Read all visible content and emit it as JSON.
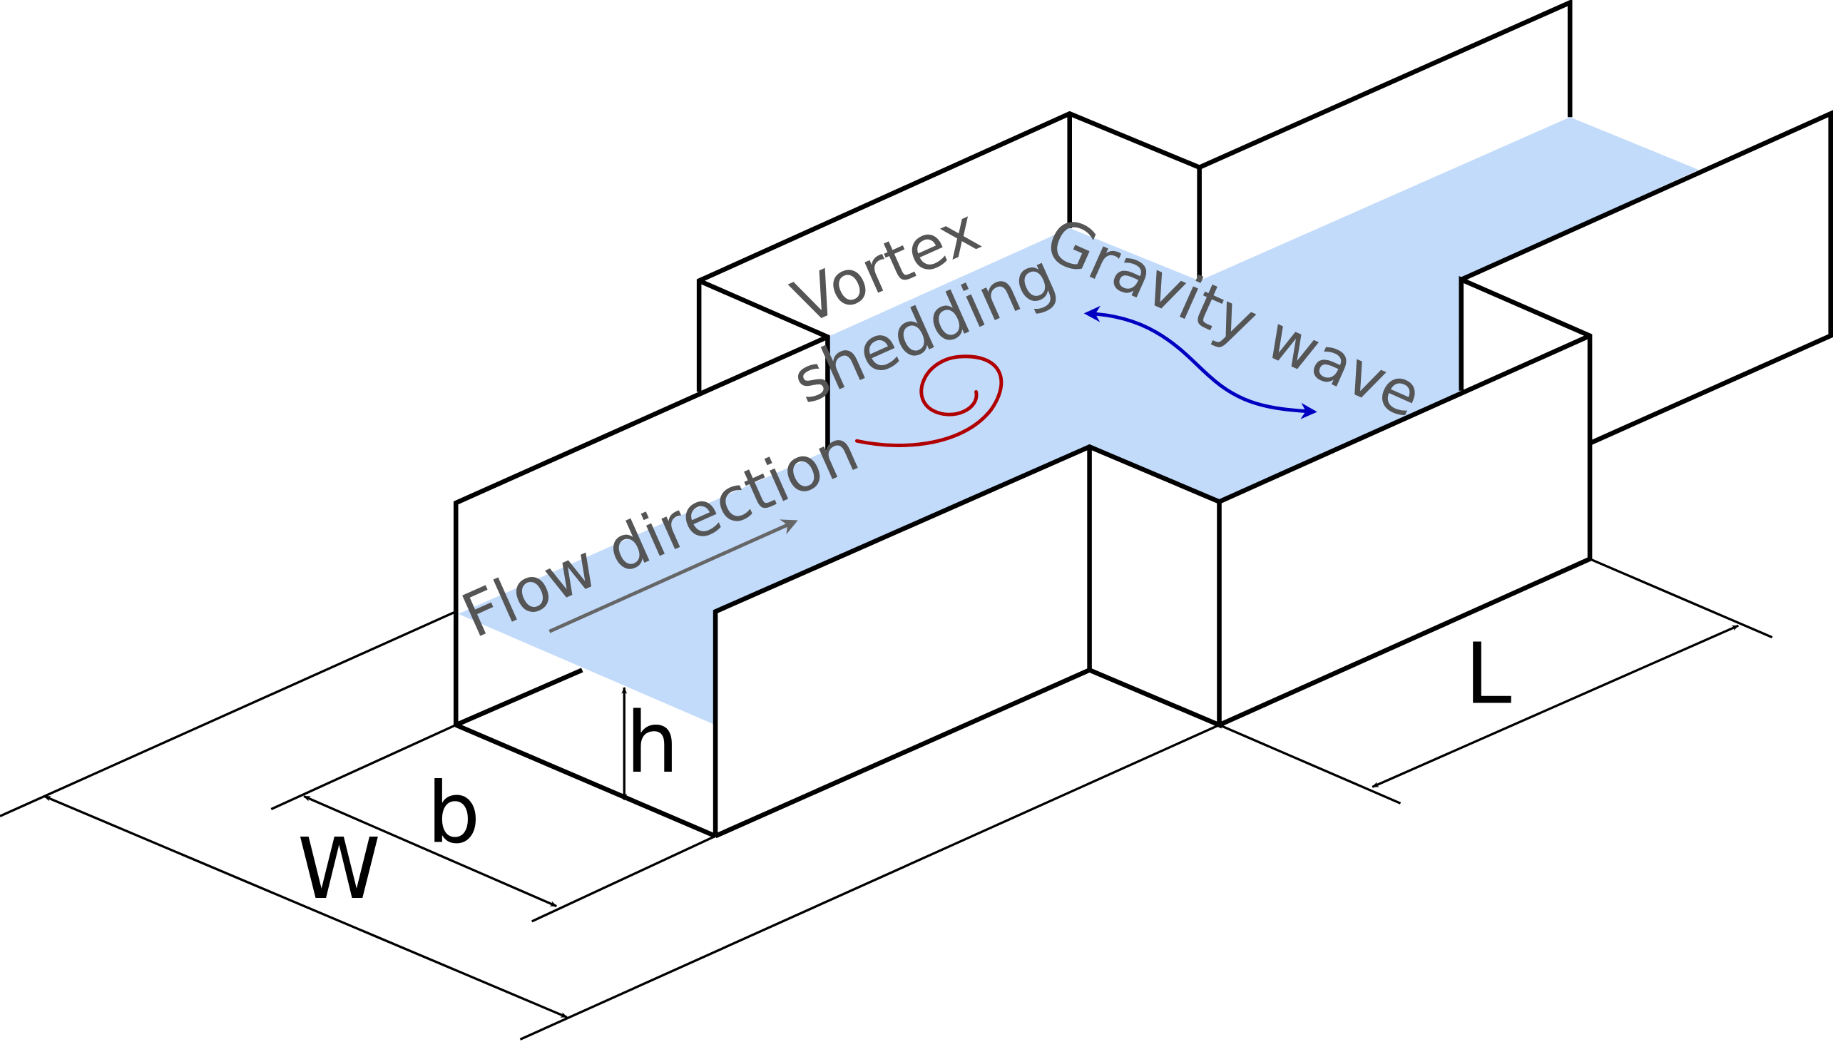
{
  "labels": {
    "vortex_line1": "Vortex",
    "vortex_line2": "shedding",
    "gravity": "Gravity wave",
    "flow": "Flow direction",
    "h": "h",
    "b": "b",
    "W": "W",
    "L": "L"
  },
  "colors": {
    "water": "#c2dbfb",
    "edges": "#000000",
    "label_text": "#555555",
    "flow_arrow": "#666666",
    "vortex": "#b00000",
    "gravity_wave": "#0000c0"
  }
}
